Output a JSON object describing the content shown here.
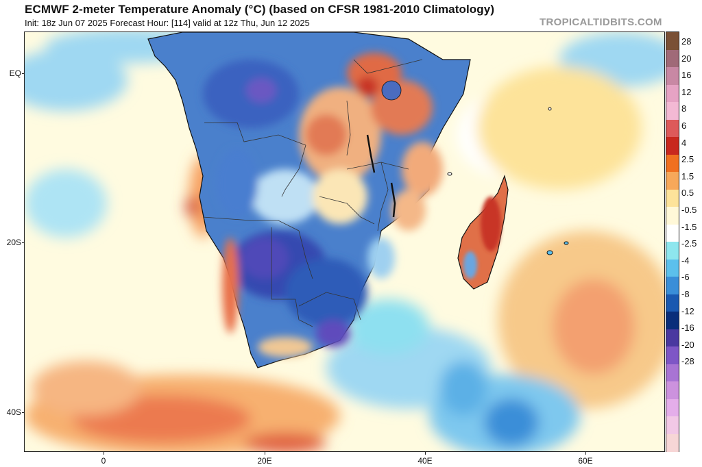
{
  "header": {
    "title": "ECMWF 2-meter Temperature Anomaly (°C) (based on CFSR 1981-2010 Climatology)",
    "subtitle": "Init: 18z Jun 07 2025   Forecast Hour: [114]   valid at 12z Thu, Jun 12 2025",
    "brand": "TROPICALTIDBITS.COM"
  },
  "map": {
    "region": "Southern Africa and surrounding oceans",
    "lat_labels": [
      "EQ",
      "20S",
      "40S"
    ],
    "lon_labels": [
      "0",
      "20E",
      "40E",
      "60E"
    ],
    "colors": {
      "land_cold": "#3a6fc4",
      "land_very_cold": "#5050b8",
      "ocean_neutral": "#fffbe0",
      "ocean_warm": "#f7c98a",
      "ocean_cold": "#9fd8f2",
      "warm_spot": "#e86a45",
      "hot_spot": "#c9302c",
      "coastline": "#111111"
    }
  },
  "colorbar": {
    "labels": [
      "28",
      "20",
      "16",
      "12",
      "8",
      "6",
      "4",
      "2.5",
      "1.5",
      "0.5",
      "-0.5",
      "-1.5",
      "-2.5",
      "-4",
      "-6",
      "-8",
      "-12",
      "-16",
      "-20",
      "-28"
    ],
    "colors": [
      "#7a5035",
      "#a06a78",
      "#c888a4",
      "#e6a3c4",
      "#f3b9d4",
      "#dd5a5a",
      "#c8281e",
      "#f07020",
      "#f7a85a",
      "#fde39a",
      "#fff8d8",
      "#ffffff",
      "#8ee6ee",
      "#5cc0ec",
      "#3a8ed8",
      "#1a58b0",
      "#0a2e7a",
      "#4a38a0",
      "#7e56c6",
      "#a874d4",
      "#cc92de",
      "#e4aeea",
      "#f2c8e6",
      "#f7d6d6"
    ]
  }
}
